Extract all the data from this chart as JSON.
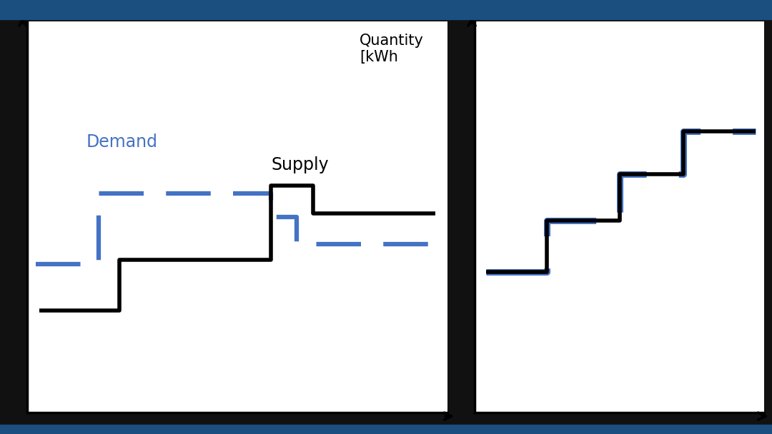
{
  "fig_width": 10.8,
  "fig_height": 6.08,
  "plot_bg": "#ffffff",
  "fig_bg": "#111111",
  "border_color": "#1a4f80",
  "supply_color": "#000000",
  "demand_color": "#4472c4",
  "supply_lw": 4.0,
  "demand_lw": 4.5,
  "label_demand": "Demand",
  "label_supply": "Supply",
  "label_qty": "Quantity\n[kWh"
}
